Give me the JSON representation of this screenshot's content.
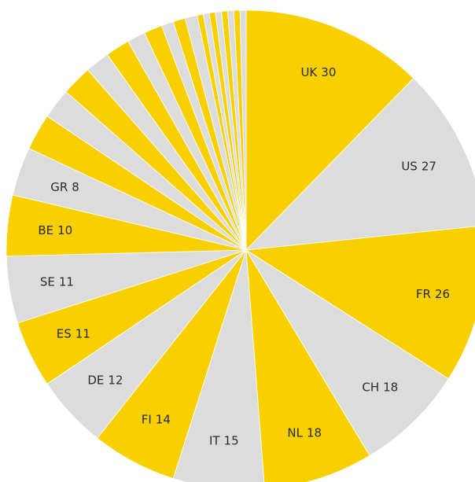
{
  "chart_data": {
    "type": "pie",
    "categories": [
      "UK",
      "US",
      "FR",
      "CH",
      "NL",
      "IT",
      "FI",
      "DE",
      "ES",
      "SE",
      "BE",
      "GR",
      null,
      null,
      null,
      null,
      null,
      null,
      null,
      null,
      null,
      null,
      null,
      null,
      null,
      null,
      null,
      null,
      null,
      null
    ],
    "values": [
      30,
      27,
      26,
      18,
      18,
      15,
      14,
      12,
      11,
      11,
      10,
      8,
      6,
      5,
      5,
      4,
      4,
      3,
      3,
      2,
      2,
      2,
      1,
      1,
      1,
      1,
      1,
      1,
      1,
      1
    ],
    "colors": [
      "#f8d000",
      "#dcdcdc"
    ]
  }
}
